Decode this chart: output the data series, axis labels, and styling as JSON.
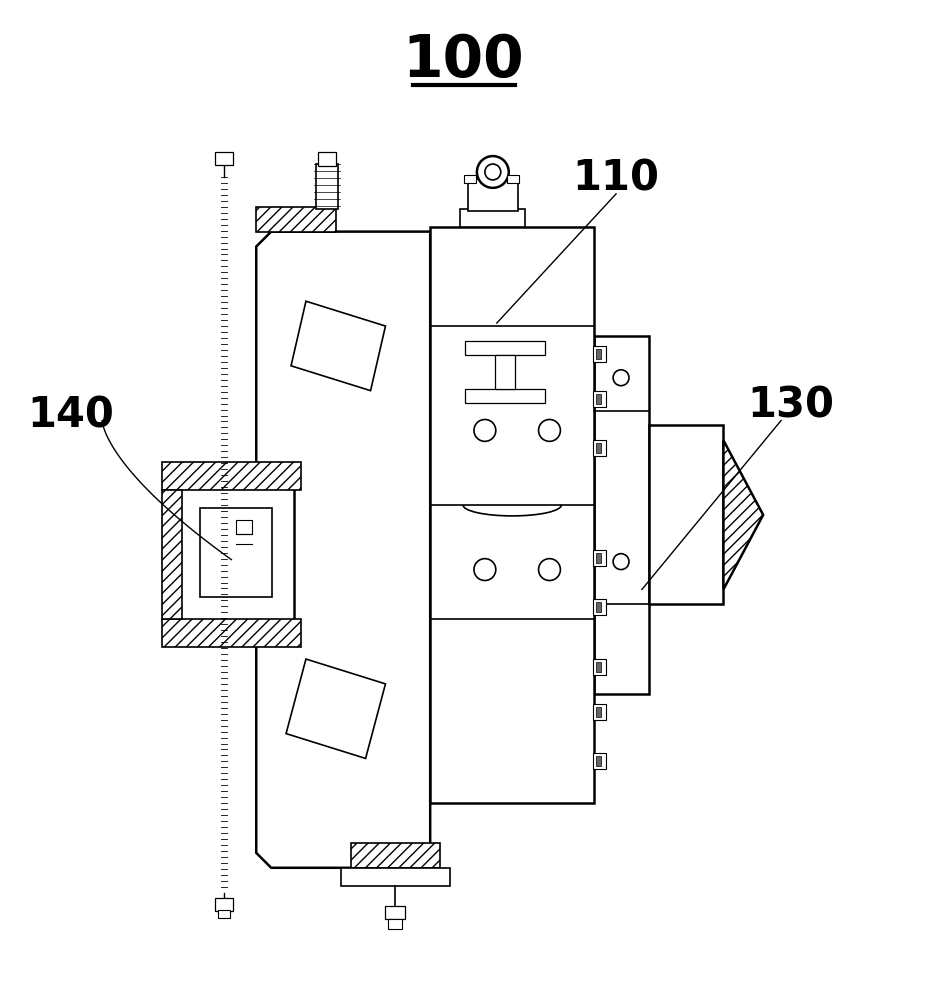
{
  "bg_color": "#ffffff",
  "line_color": "#000000",
  "label_100": "100",
  "label_110": "110",
  "label_130": "130",
  "label_140": "140",
  "figsize": [
    9.27,
    10.0
  ],
  "dpi": 100
}
